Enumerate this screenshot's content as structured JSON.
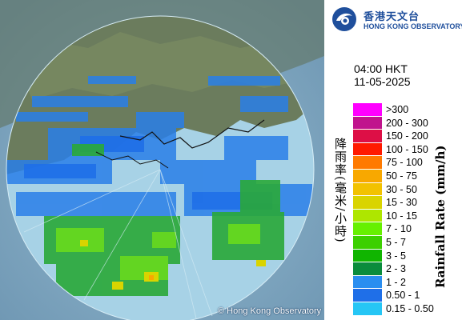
{
  "header": {
    "org_name_cn": "香港天文台",
    "org_name_en": "HONG KONG OBSERVATORY",
    "logo_icon": "hko-logo-icon"
  },
  "timestamp": {
    "time": "04:00 HKT",
    "date": "11-05-2025"
  },
  "legend": {
    "title_cn": "降雨率(毫米/小時)",
    "title_en": "Rainfall Rate (mm/h)",
    "items": [
      {
        "label": ">300",
        "color": "#ff00ff"
      },
      {
        "label": "200 - 300",
        "color": "#c0138d"
      },
      {
        "label": "150 - 200",
        "color": "#dd0f46"
      },
      {
        "label": "100 - 150",
        "color": "#ff1a00"
      },
      {
        "label": "75 - 100",
        "color": "#ff7a00"
      },
      {
        "label": "50 - 75",
        "color": "#f8a800"
      },
      {
        "label": "30 - 50",
        "color": "#f2c200"
      },
      {
        "label": "15 - 30",
        "color": "#d9d400"
      },
      {
        "label": "10 - 15",
        "color": "#aee600"
      },
      {
        "label": "7 - 10",
        "color": "#66f000"
      },
      {
        "label": "5 - 7",
        "color": "#3cd000"
      },
      {
        "label": "3 - 5",
        "color": "#10b500"
      },
      {
        "label": "2 - 3",
        "color": "#0a8c3c"
      },
      {
        "label": "1 - 2",
        "color": "#2a8ef0"
      },
      {
        "label": "0.50 - 1",
        "color": "#1f6fe8"
      },
      {
        "label": "0.15 - 0.50",
        "color": "#26c6f5"
      }
    ]
  },
  "map": {
    "credit": "© Hong Kong Observatory",
    "land_color": "#6b7c5d",
    "sea_color": "#7fa8bf",
    "radar_range_color": "#a7d2e6"
  }
}
